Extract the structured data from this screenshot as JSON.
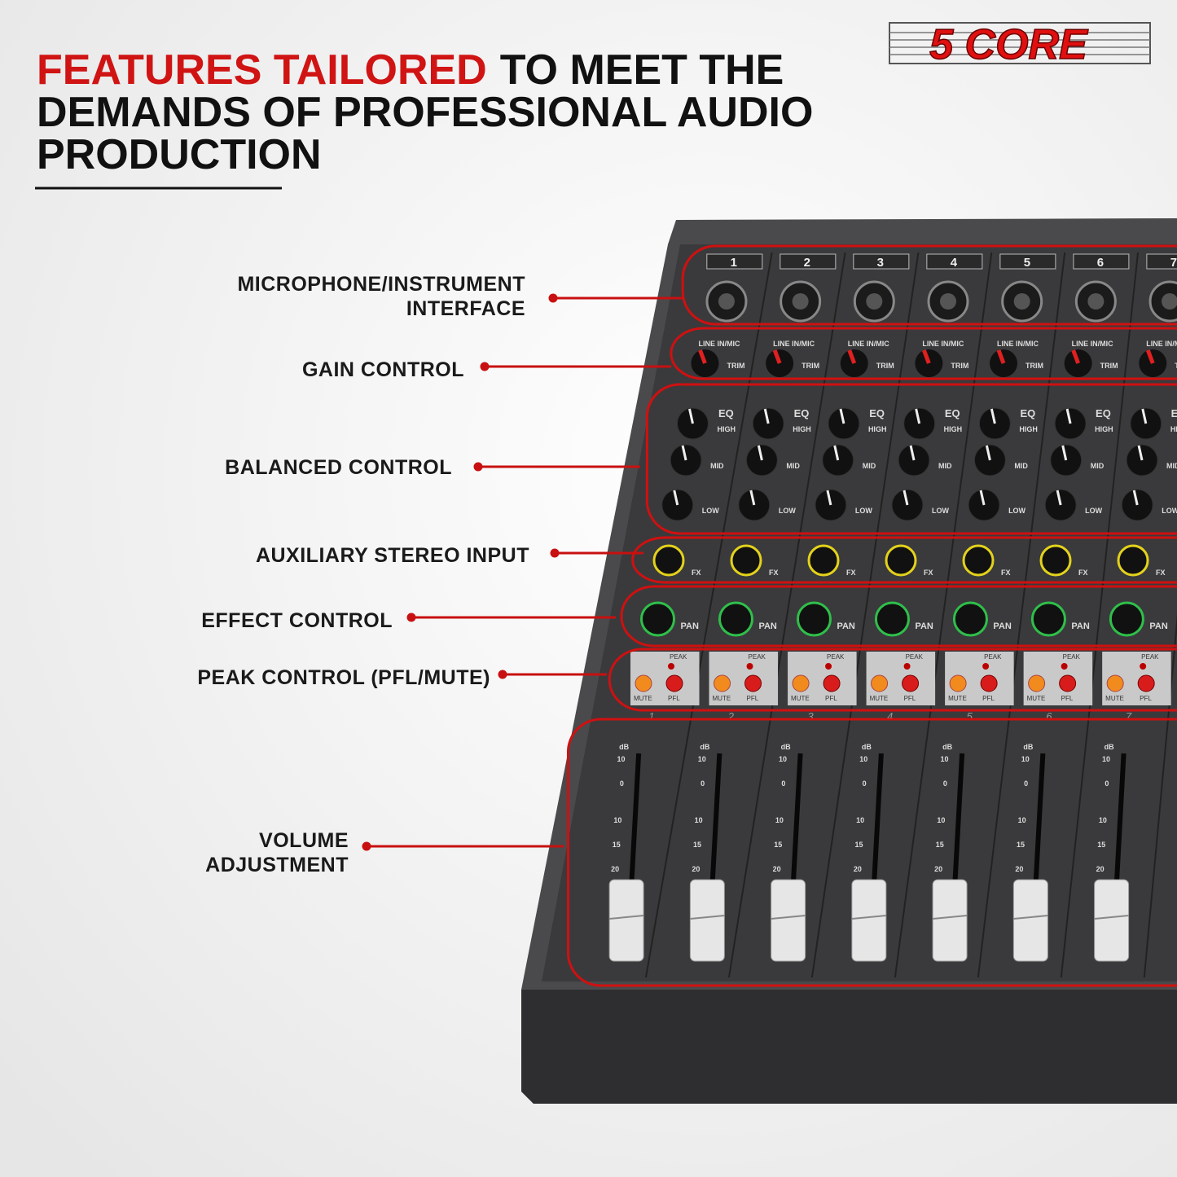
{
  "header": {
    "title": {
      "highlight": "FEATURES TAILORED",
      "lines": [
        "TO MEET THE",
        "DEMANDS OF PROFESSIONAL AUDIO",
        "PRODUCTION"
      ]
    },
    "logo": "5 CORE"
  },
  "callouts": [
    {
      "lines": [
        "MICROPHONE/INSTRUMENT",
        "INTERFACE"
      ]
    },
    {
      "lines": [
        "GAIN CONTROL"
      ]
    },
    {
      "lines": [
        "BALANCED CONTROL"
      ]
    },
    {
      "lines": [
        "AUXILIARY STEREO INPUT"
      ]
    },
    {
      "lines": [
        "EFFECT CONTROL"
      ]
    },
    {
      "lines": [
        "PEAK CONTROL (PFL/MUTE)"
      ]
    },
    {
      "lines": [
        "VOLUME",
        "ADJUSTMENT"
      ]
    }
  ],
  "mixer": {
    "channels": [
      "1",
      "2",
      "3",
      "4",
      "5",
      "6",
      "7"
    ],
    "labels": {
      "input": "LINE IN/MIC",
      "trim": "TRIM",
      "eq": "EQ",
      "high": "HIGH",
      "mid": "MID",
      "low": "LOW",
      "fx": "FX",
      "pan": "PAN",
      "peak": "PEAK",
      "mute": "MUTE",
      "pfl": "PFL",
      "db": "dB"
    },
    "fader_scale": [
      "10",
      "0",
      "10",
      "15",
      "20"
    ]
  }
}
